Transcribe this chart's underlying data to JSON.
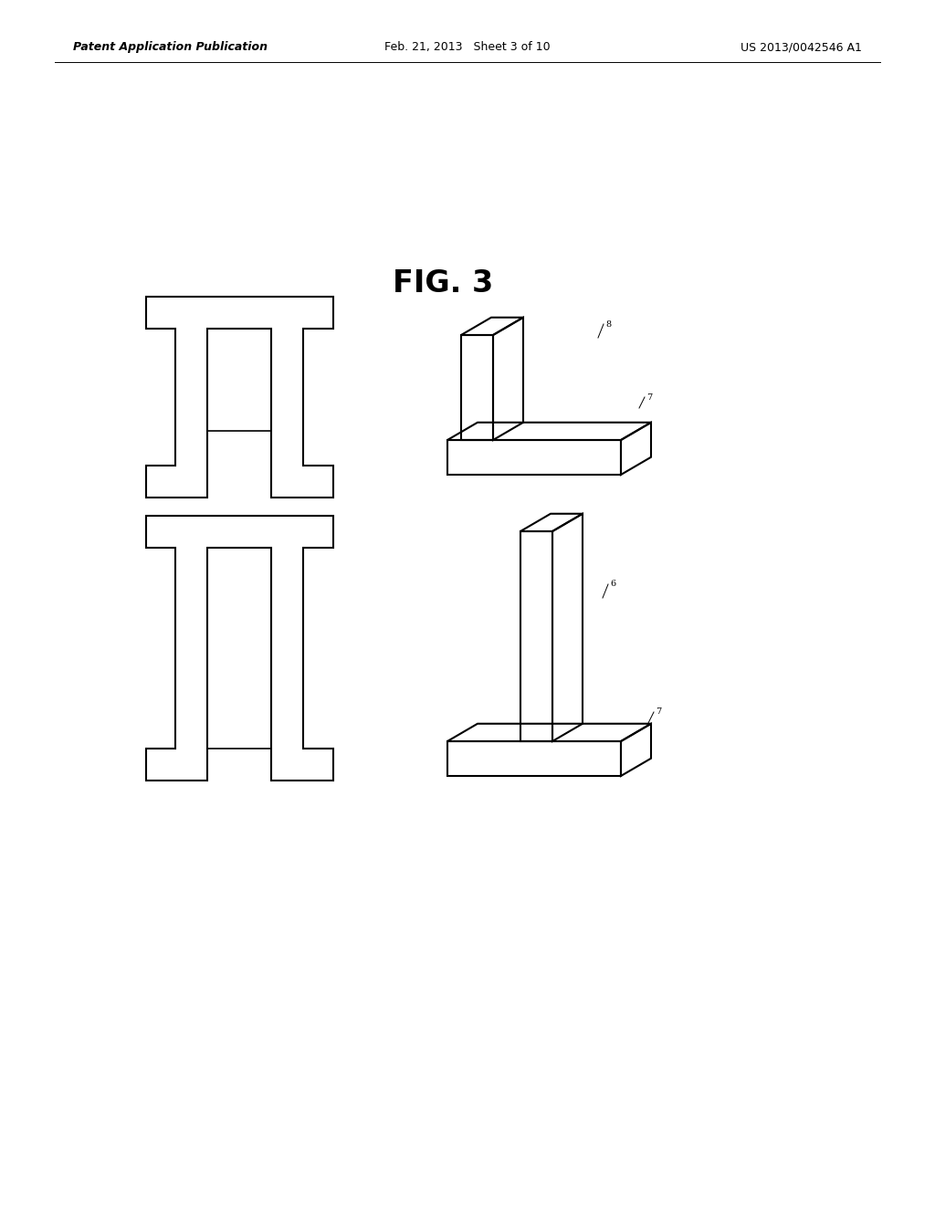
{
  "background_color": "#ffffff",
  "header_left": "Patent Application Publication",
  "header_mid": "Feb. 21, 2013   Sheet 3 of 10",
  "header_right": "US 2013/0042546 A1",
  "fig_label": "FIG. 3",
  "line_color": "#000000",
  "line_width": 1.5
}
